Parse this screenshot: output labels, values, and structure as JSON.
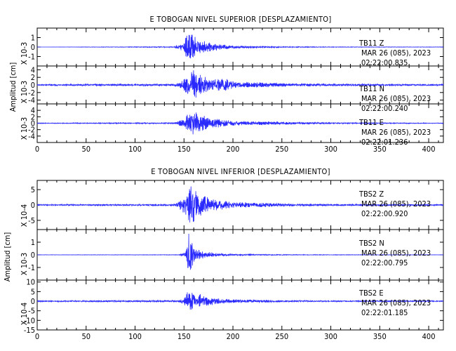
{
  "chart_data": [
    {
      "type": "line",
      "title": "E TOBOGAN NIVEL SUPERIOR [DESPLAZAMIENTO]",
      "ylabel": "Amplitud [cm]",
      "xlim": [
        0,
        415
      ],
      "xticks": [
        0,
        50,
        100,
        150,
        200,
        250,
        300,
        350,
        400
      ],
      "panels": [
        {
          "scale_label": "X 10-3",
          "station": "TB11",
          "component": "Z",
          "date": "MAR 26 (085), 2023",
          "time": "02:22:00.835",
          "ylim": [
            -2,
            2
          ],
          "yticks": [
            -1,
            0,
            1
          ],
          "series": [
            {
              "x": [
                0,
                140,
                150,
                155,
                160,
                175,
                200,
                250,
                300,
                415
              ],
              "values": [
                0,
                0.05,
                0.6,
                1.9,
                1.2,
                0.5,
                0.15,
                0.06,
                0.03,
                0.02
              ]
            }
          ]
        },
        {
          "scale_label": "X 10-3",
          "station": "TB11",
          "component": "N",
          "date": "MAR 26 (085), 2023",
          "time": "02:22:00.240",
          "ylim": [
            -5,
            5
          ],
          "yticks": [
            -4,
            -2,
            0,
            2,
            4
          ],
          "series": [
            {
              "x": [
                0,
                140,
                150,
                158,
                165,
                180,
                190,
                200,
                250,
                300,
                415
              ],
              "values": [
                0.2,
                0.3,
                1.5,
                4.5,
                3,
                1.5,
                2,
                1,
                0.5,
                0.3,
                0.2
              ]
            }
          ]
        },
        {
          "scale_label": "X 10-3",
          "station": "TB11",
          "component": "E",
          "date": "MAR 26 (085), 2023",
          "time": "02:22:01.236",
          "ylim": [
            -6,
            6
          ],
          "yticks": [
            -4,
            -2,
            0,
            2,
            4
          ],
          "series": [
            {
              "x": [
                0,
                140,
                150,
                158,
                165,
                180,
                200,
                250,
                300,
                415
              ],
              "values": [
                0.1,
                0.2,
                1.5,
                4.5,
                3,
                1.5,
                0.8,
                0.4,
                0.2,
                0.1
              ]
            }
          ]
        }
      ]
    },
    {
      "type": "line",
      "title": "E TOBOGAN NIVEL INFERIOR [DESPLAZAMIENTO]",
      "ylabel": "Amplitud [cm]",
      "xlim": [
        0,
        415
      ],
      "xticks": [
        0,
        50,
        100,
        150,
        200,
        250,
        300,
        350,
        400
      ],
      "panels": [
        {
          "scale_label": "X 10-4",
          "station": "TBS2",
          "component": "Z",
          "date": "MAR 26 (085), 2023",
          "time": "02:22:00.920",
          "ylim": [
            -8,
            8
          ],
          "yticks": [
            -5,
            0,
            5
          ],
          "series": [
            {
              "x": [
                0,
                140,
                145,
                152,
                158,
                165,
                180,
                200,
                250,
                300,
                415
              ],
              "values": [
                0.2,
                0.3,
                1.5,
                4,
                7.5,
                4,
                2,
                1,
                0.5,
                0.3,
                0.2
              ]
            }
          ]
        },
        {
          "scale_label": "X 10-3",
          "station": "TBS2",
          "component": "N",
          "date": "MAR 26 (085), 2023",
          "time": "02:22:00.795",
          "ylim": [
            -2,
            2
          ],
          "yticks": [
            -1,
            0,
            1
          ],
          "series": [
            {
              "x": [
                0,
                145,
                152,
                155,
                160,
                170,
                185,
                200,
                250,
                300,
                415
              ],
              "values": [
                0.01,
                0.02,
                0.3,
                1.9,
                0.6,
                0.3,
                0.12,
                0.06,
                0.03,
                0.02,
                0.01
              ]
            }
          ]
        },
        {
          "scale_label": "X 10-4",
          "station": "TBS2",
          "component": "E",
          "date": "MAR 26 (085), 2023",
          "time": "02:22:01.185",
          "ylim": [
            -15,
            11
          ],
          "yticks": [
            -15,
            -10,
            -5,
            0,
            5,
            10
          ],
          "series": [
            {
              "x": [
                0,
                145,
                152,
                156,
                160,
                170,
                185,
                200,
                250,
                300,
                415
              ],
              "values": [
                0.3,
                0.5,
                3,
                8,
                5,
                3,
                1.5,
                1,
                0.5,
                0.3,
                0.3
              ]
            }
          ]
        }
      ]
    }
  ]
}
